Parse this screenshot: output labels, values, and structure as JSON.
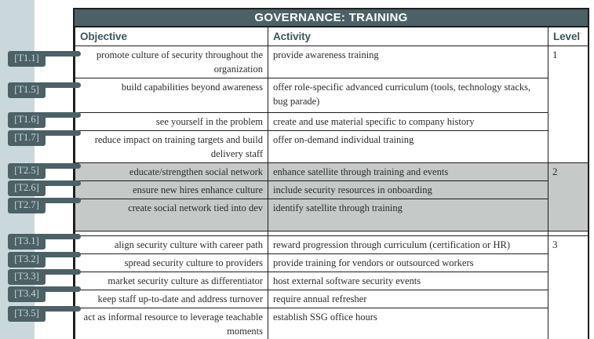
{
  "header": {
    "title": "GOVERNANCE: TRAINING"
  },
  "columns": {
    "objective": "Objective",
    "activity": "Activity",
    "level": "Level"
  },
  "groups": [
    {
      "level": "1",
      "shaded": false,
      "rows": [
        {
          "id": "T1.1",
          "tag": "[T1.1]",
          "objective": "promote culture of security throughout the organization",
          "activity": "provide awareness training"
        },
        {
          "id": "T1.5",
          "tag": "[T1.5]",
          "objective": "build capabilities beyond awareness",
          "activity": "offer role-specific advanced curriculum (tools, technology stacks, bug parade)"
        },
        {
          "id": "T1.6",
          "tag": "[T1.6]",
          "objective": "see yourself in the problem",
          "activity": "create and use material specific to company history"
        },
        {
          "id": "T1.7",
          "tag": "[T1.7]",
          "objective": "reduce impact on training targets and build delivery staff",
          "activity": "offer on-demand individual training"
        }
      ]
    },
    {
      "level": "2",
      "shaded": true,
      "rows": [
        {
          "id": "T2.5",
          "tag": "[T2.5]",
          "objective": "educate/strengthen social network",
          "activity": "enhance satellite through training and events"
        },
        {
          "id": "T2.6",
          "tag": "[T2.6]",
          "objective": "ensure new hires enhance culture",
          "activity": "include security resources in onboarding"
        },
        {
          "id": "T2.7",
          "tag": "[T2.7]",
          "objective": "create social network tied into dev",
          "activity": "identify satellite through training"
        }
      ]
    },
    {
      "level": "3",
      "shaded": false,
      "rows": [
        {
          "id": "T3.1",
          "tag": "[T3.1]",
          "objective": "align security culture with career path",
          "activity": "reward progression through curriculum (certification or HR)"
        },
        {
          "id": "T3.2",
          "tag": "[T3.2]",
          "objective": "spread security culture to providers",
          "activity": "provide training for vendors or outsourced workers"
        },
        {
          "id": "T3.3",
          "tag": "[T3.3]",
          "objective": "market security culture as differentiator",
          "activity": "host external software security events"
        },
        {
          "id": "T3.4",
          "tag": "[T3.4]",
          "objective": "keep staff up-to-date and address turnover",
          "activity": "require annual refresher"
        },
        {
          "id": "T3.5",
          "tag": "[T3.5]",
          "objective": "act as informal resource to leverage teachable moments",
          "activity": "establish SSG office hours"
        }
      ]
    }
  ],
  "colors": {
    "accent": "#4b6165",
    "tag_text": "#c9d6d9",
    "shaded_row": "#c5c9c7",
    "left_band": "#cbd8db",
    "header_text": "#3d565e",
    "border": "#1e1e1e",
    "title_text": "#ffffff",
    "body_text": "#2b2b2b"
  }
}
